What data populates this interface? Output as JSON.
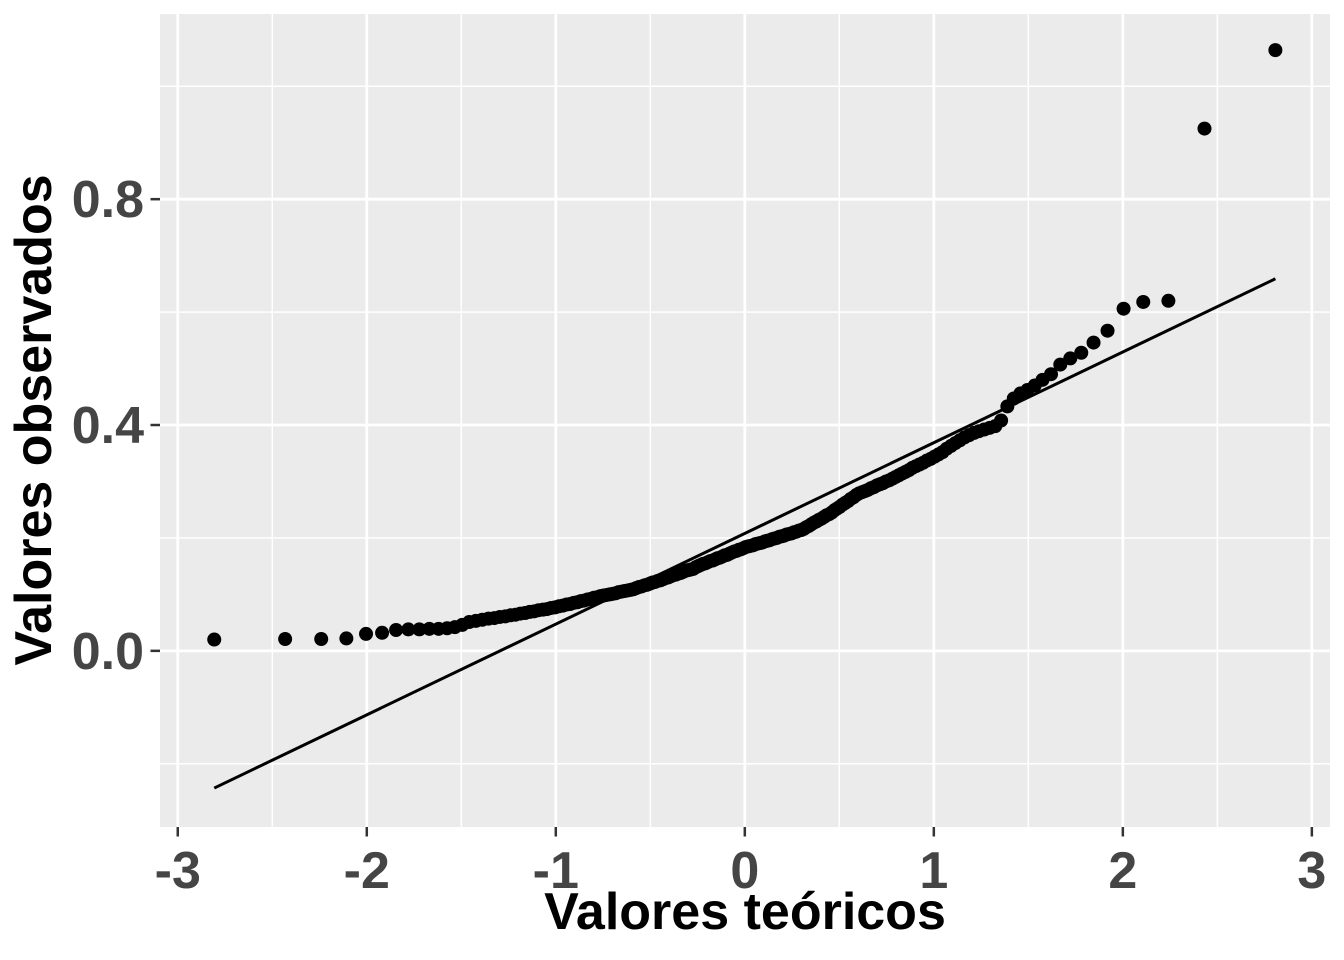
{
  "chart_data": {
    "type": "scatter",
    "title": "",
    "xlabel": "Valores teóricos",
    "ylabel": "Valores observados",
    "x_ticks": [
      -3,
      -2,
      -1,
      0,
      1,
      2,
      3
    ],
    "x_tick_labels": [
      "-3",
      "-2",
      "-1",
      "0",
      "1",
      "2",
      "3"
    ],
    "y_ticks": [
      0.0,
      0.4,
      0.8
    ],
    "y_tick_labels": [
      "0.0",
      "0.4",
      "0.8"
    ],
    "x_minor_ticks": [
      -2.5,
      -1.5,
      -0.5,
      0.5,
      1.5,
      2.5
    ],
    "y_minor_ticks": [
      -0.2,
      0.2,
      0.6,
      1.0
    ],
    "xlim": [
      -3.094,
      3.096
    ],
    "ylim": [
      -0.312,
      1.128
    ],
    "grid": "major+minor white gridlines on gray panel",
    "legend_position": "none",
    "n_points": 200,
    "qq_line": {
      "x1": -2.807,
      "y1": -0.243,
      "x2": 2.807,
      "y2": 0.659
    },
    "points": [
      [
        -2.807,
        0.02
      ],
      [
        -2.432,
        0.021
      ],
      [
        -2.241,
        0.021
      ],
      [
        -2.108,
        0.022
      ],
      [
        -2.004,
        0.03
      ],
      [
        -1.919,
        0.032
      ],
      [
        -1.845,
        0.037
      ],
      [
        -1.78,
        0.038
      ],
      [
        -1.722,
        0.038
      ],
      [
        -1.669,
        0.039
      ],
      [
        -1.62,
        0.039
      ],
      [
        -1.575,
        0.04
      ],
      [
        -1.534,
        0.042
      ],
      [
        -1.495,
        0.046
      ],
      [
        -1.458,
        0.051
      ],
      [
        -1.423,
        0.053
      ],
      [
        -1.389,
        0.055
      ],
      [
        -1.356,
        0.057
      ],
      [
        -1.325,
        0.058
      ],
      [
        -1.296,
        0.06
      ],
      [
        -1.267,
        0.061
      ],
      [
        -1.239,
        0.063
      ],
      [
        -1.213,
        0.064
      ],
      [
        -1.187,
        0.066
      ],
      [
        -1.162,
        0.067
      ],
      [
        -1.138,
        0.069
      ],
      [
        -1.114,
        0.07
      ],
      [
        -1.091,
        0.072
      ],
      [
        -1.068,
        0.073
      ],
      [
        -1.046,
        0.074
      ],
      [
        -1.025,
        0.076
      ],
      [
        -1.004,
        0.077
      ],
      [
        -0.983,
        0.079
      ],
      [
        -0.963,
        0.08
      ],
      [
        -0.943,
        0.082
      ],
      [
        -0.924,
        0.083
      ],
      [
        -0.905,
        0.085
      ],
      [
        -0.886,
        0.086
      ],
      [
        -0.868,
        0.088
      ],
      [
        -0.85,
        0.089
      ],
      [
        -0.832,
        0.091
      ],
      [
        -0.815,
        0.092
      ],
      [
        -0.798,
        0.094
      ],
      [
        -0.781,
        0.095
      ],
      [
        -0.764,
        0.097
      ],
      [
        -0.747,
        0.098
      ],
      [
        -0.731,
        0.099
      ],
      [
        -0.715,
        0.1
      ],
      [
        -0.699,
        0.101
      ],
      [
        -0.683,
        0.102
      ],
      [
        -0.667,
        0.104
      ],
      [
        -0.651,
        0.105
      ],
      [
        -0.636,
        0.106
      ],
      [
        -0.62,
        0.107
      ],
      [
        -0.605,
        0.108
      ],
      [
        -0.59,
        0.109
      ],
      [
        -0.575,
        0.111
      ],
      [
        -0.56,
        0.113
      ],
      [
        -0.546,
        0.114
      ],
      [
        -0.531,
        0.116
      ],
      [
        -0.517,
        0.117
      ],
      [
        -0.502,
        0.119
      ],
      [
        -0.488,
        0.121
      ],
      [
        -0.474,
        0.122
      ],
      [
        -0.46,
        0.124
      ],
      [
        -0.446,
        0.125
      ],
      [
        -0.432,
        0.127
      ],
      [
        -0.419,
        0.129
      ],
      [
        -0.405,
        0.13
      ],
      [
        -0.392,
        0.132
      ],
      [
        -0.378,
        0.134
      ],
      [
        -0.365,
        0.135
      ],
      [
        -0.351,
        0.137
      ],
      [
        -0.338,
        0.138
      ],
      [
        -0.325,
        0.14
      ],
      [
        -0.312,
        0.142
      ],
      [
        -0.299,
        0.143
      ],
      [
        -0.286,
        0.144
      ],
      [
        -0.273,
        0.145
      ],
      [
        -0.26,
        0.148
      ],
      [
        -0.247,
        0.15
      ],
      [
        -0.234,
        0.152
      ],
      [
        -0.221,
        0.154
      ],
      [
        -0.208,
        0.155
      ],
      [
        -0.196,
        0.157
      ],
      [
        -0.183,
        0.159
      ],
      [
        -0.17,
        0.16
      ],
      [
        -0.157,
        0.162
      ],
      [
        -0.145,
        0.164
      ],
      [
        -0.132,
        0.165
      ],
      [
        -0.119,
        0.167
      ],
      [
        -0.107,
        0.169
      ],
      [
        -0.094,
        0.17
      ],
      [
        -0.082,
        0.172
      ],
      [
        -0.069,
        0.174
      ],
      [
        -0.056,
        0.176
      ],
      [
        -0.044,
        0.177
      ],
      [
        -0.031,
        0.179
      ],
      [
        -0.019,
        0.18
      ],
      [
        -0.006,
        0.182
      ],
      [
        0.006,
        0.184
      ],
      [
        0.019,
        0.185
      ],
      [
        0.031,
        0.186
      ],
      [
        0.044,
        0.187
      ],
      [
        0.056,
        0.189
      ],
      [
        0.069,
        0.19
      ],
      [
        0.082,
        0.191
      ],
      [
        0.094,
        0.192
      ],
      [
        0.107,
        0.194
      ],
      [
        0.119,
        0.195
      ],
      [
        0.132,
        0.196
      ],
      [
        0.145,
        0.198
      ],
      [
        0.157,
        0.199
      ],
      [
        0.17,
        0.2
      ],
      [
        0.183,
        0.202
      ],
      [
        0.196,
        0.203
      ],
      [
        0.208,
        0.204
      ],
      [
        0.221,
        0.206
      ],
      [
        0.234,
        0.207
      ],
      [
        0.247,
        0.208
      ],
      [
        0.26,
        0.21
      ],
      [
        0.273,
        0.211
      ],
      [
        0.286,
        0.213
      ],
      [
        0.299,
        0.214
      ],
      [
        0.312,
        0.216
      ],
      [
        0.325,
        0.219
      ],
      [
        0.338,
        0.221
      ],
      [
        0.351,
        0.224
      ],
      [
        0.365,
        0.227
      ],
      [
        0.378,
        0.229
      ],
      [
        0.392,
        0.232
      ],
      [
        0.405,
        0.234
      ],
      [
        0.419,
        0.237
      ],
      [
        0.432,
        0.24
      ],
      [
        0.446,
        0.242
      ],
      [
        0.46,
        0.245
      ],
      [
        0.474,
        0.249
      ],
      [
        0.488,
        0.252
      ],
      [
        0.502,
        0.255
      ],
      [
        0.517,
        0.259
      ],
      [
        0.531,
        0.262
      ],
      [
        0.546,
        0.265
      ],
      [
        0.56,
        0.269
      ],
      [
        0.575,
        0.272
      ],
      [
        0.59,
        0.276
      ],
      [
        0.605,
        0.279
      ],
      [
        0.62,
        0.281
      ],
      [
        0.636,
        0.283
      ],
      [
        0.651,
        0.285
      ],
      [
        0.667,
        0.288
      ],
      [
        0.683,
        0.29
      ],
      [
        0.699,
        0.293
      ],
      [
        0.715,
        0.295
      ],
      [
        0.731,
        0.297
      ],
      [
        0.747,
        0.3
      ],
      [
        0.764,
        0.302
      ],
      [
        0.781,
        0.305
      ],
      [
        0.798,
        0.308
      ],
      [
        0.815,
        0.311
      ],
      [
        0.832,
        0.314
      ],
      [
        0.85,
        0.317
      ],
      [
        0.868,
        0.32
      ],
      [
        0.886,
        0.324
      ],
      [
        0.905,
        0.327
      ],
      [
        0.924,
        0.33
      ],
      [
        0.943,
        0.333
      ],
      [
        0.963,
        0.337
      ],
      [
        0.983,
        0.34
      ],
      [
        1.004,
        0.344
      ],
      [
        1.025,
        0.348
      ],
      [
        1.046,
        0.352
      ],
      [
        1.068,
        0.358
      ],
      [
        1.091,
        0.363
      ],
      [
        1.114,
        0.368
      ],
      [
        1.138,
        0.373
      ],
      [
        1.162,
        0.378
      ],
      [
        1.187,
        0.382
      ],
      [
        1.213,
        0.386
      ],
      [
        1.239,
        0.389
      ],
      [
        1.267,
        0.392
      ],
      [
        1.296,
        0.395
      ],
      [
        1.325,
        0.398
      ],
      [
        1.356,
        0.408
      ],
      [
        1.389,
        0.433
      ],
      [
        1.423,
        0.447
      ],
      [
        1.458,
        0.456
      ],
      [
        1.495,
        0.462
      ],
      [
        1.534,
        0.47
      ],
      [
        1.575,
        0.48
      ],
      [
        1.62,
        0.49
      ],
      [
        1.669,
        0.507
      ],
      [
        1.722,
        0.518
      ],
      [
        1.78,
        0.528
      ],
      [
        1.845,
        0.546
      ],
      [
        1.919,
        0.567
      ],
      [
        2.004,
        0.606
      ],
      [
        2.108,
        0.618
      ],
      [
        2.241,
        0.62
      ],
      [
        2.432,
        0.925
      ],
      [
        2.807,
        1.064
      ]
    ],
    "style": {
      "panel_bg": "#EBEBEB",
      "grid_color": "#FFFFFF",
      "point_color": "#000000",
      "line_color": "#000000",
      "tick_mark_color": "#333333",
      "axis_text_color": "#454545",
      "axis_title_color": "#000000",
      "figure_bg": "#FFFFFF"
    }
  }
}
